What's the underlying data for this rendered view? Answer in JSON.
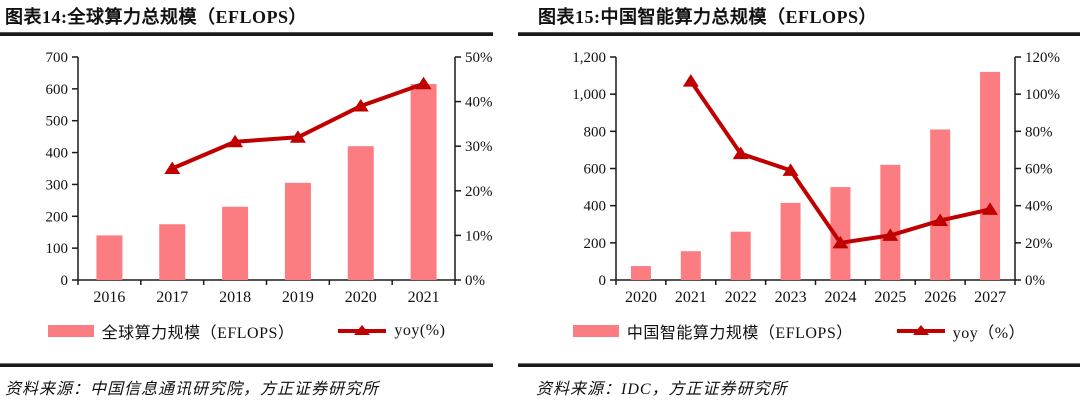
{
  "chart_data": [
    {
      "type": "bar+line",
      "title": "图表14:全球算力总规模（EFLOPS）",
      "categories": [
        "2016",
        "2017",
        "2018",
        "2019",
        "2020",
        "2021"
      ],
      "series": [
        {
          "name": "全球算力规模（EFLOPS）",
          "type": "bar",
          "axis": "left",
          "values": [
            140,
            175,
            230,
            305,
            420,
            615
          ]
        },
        {
          "name": "yoy(%)",
          "type": "line",
          "axis": "right",
          "values": [
            null,
            25,
            31,
            32,
            39,
            44
          ]
        }
      ],
      "left_axis": {
        "min": 0,
        "max": 700,
        "step": 100,
        "tick_labels": [
          "0",
          "100",
          "200",
          "300",
          "400",
          "500",
          "600",
          "700"
        ]
      },
      "right_axis": {
        "min": 0,
        "max": 50,
        "step": 10,
        "tick_labels": [
          "0%",
          "10%",
          "20%",
          "30%",
          "40%",
          "50%"
        ]
      },
      "grid": false,
      "legend_position": "bottom",
      "source": "资料来源：中国信息通讯研究院，方正证券研究所",
      "colors": {
        "bar": "#FC7D81",
        "line": "#C00000",
        "axis": "#1a1a1a"
      }
    },
    {
      "type": "bar+line",
      "title": "图表15:中国智能算力总规模（EFLOPS）",
      "categories": [
        "2020",
        "2021",
        "2022",
        "2023",
        "2024",
        "2025",
        "2026",
        "2027"
      ],
      "series": [
        {
          "name": "中国智能算力规模（EFLOPS）",
          "type": "bar",
          "axis": "left",
          "values": [
            75,
            155,
            260,
            415,
            500,
            620,
            810,
            1120
          ]
        },
        {
          "name": "yoy（%）",
          "type": "line",
          "axis": "right",
          "values": [
            null,
            107,
            68,
            59,
            20,
            24,
            32,
            38
          ]
        }
      ],
      "left_axis": {
        "min": 0,
        "max": 1200,
        "step": 200,
        "tick_labels": [
          "0",
          "200",
          "400",
          "600",
          "800",
          "1,000",
          "1,200"
        ]
      },
      "right_axis": {
        "min": 0,
        "max": 120,
        "step": 20,
        "tick_labels": [
          "0%",
          "20%",
          "40%",
          "60%",
          "80%",
          "100%",
          "120%"
        ]
      },
      "grid": false,
      "legend_position": "bottom",
      "source": "资料来源：IDC，方正证券研究所",
      "colors": {
        "bar": "#FC7D81",
        "line": "#C00000",
        "axis": "#1a1a1a"
      }
    }
  ]
}
